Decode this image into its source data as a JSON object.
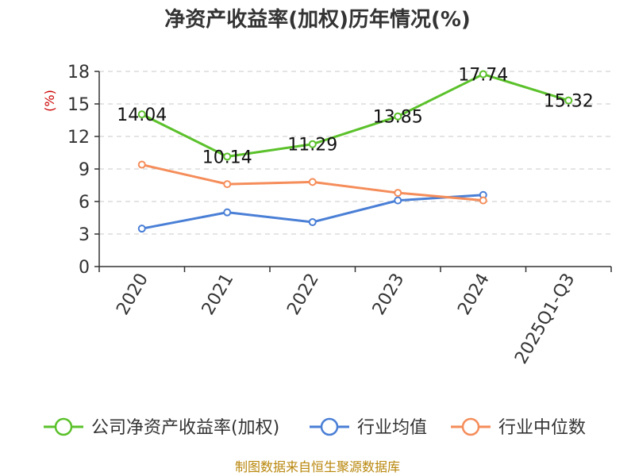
{
  "chart_data": {
    "type": "line",
    "title": "净资产收益率(加权)历年情况(%)",
    "ylabel": "(%)",
    "xlabel": "",
    "ylim": [
      0,
      18
    ],
    "yticks": [
      0,
      3,
      6,
      9,
      12,
      15,
      18
    ],
    "categories": [
      "2020",
      "2021",
      "2022",
      "2023",
      "2024",
      "2025Q1-Q3"
    ],
    "grid": true,
    "legend_position": "bottom",
    "series": [
      {
        "name": "公司净资产收益率(加权)",
        "color": "#5bc12b",
        "values": [
          14.04,
          10.14,
          11.29,
          13.85,
          17.74,
          15.32
        ],
        "labels": [
          "14.04",
          "10.14",
          "11.29",
          "13.85",
          "17.74",
          "15.32"
        ],
        "show_labels": true
      },
      {
        "name": "行业均值",
        "color": "#4a7fd6",
        "values": [
          3.5,
          5.0,
          4.1,
          6.1,
          6.6,
          null
        ],
        "show_labels": false
      },
      {
        "name": "行业中位数",
        "color": "#f58d5a",
        "values": [
          9.4,
          7.6,
          7.8,
          6.8,
          6.1,
          null
        ],
        "show_labels": false
      }
    ]
  },
  "source": "制图数据来自恒生聚源数据库"
}
